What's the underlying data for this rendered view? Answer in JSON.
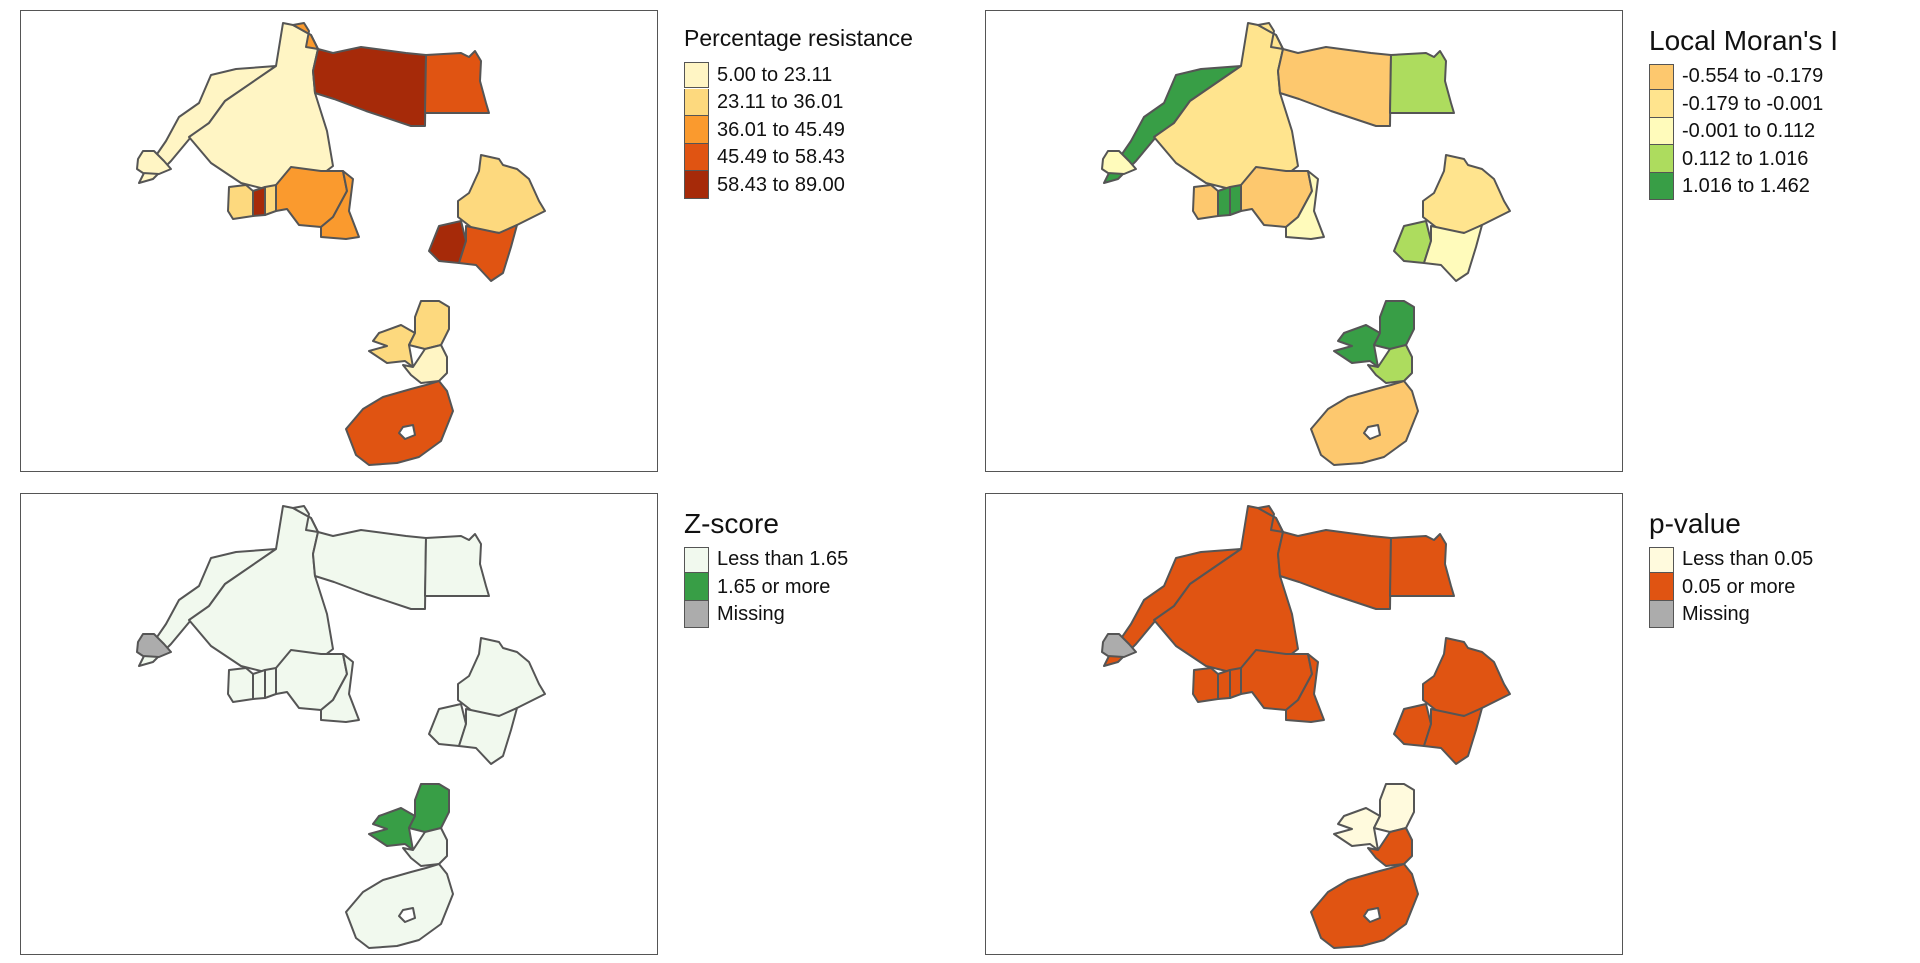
{
  "panels": [
    {
      "legend_title": "Percentage resistance",
      "legend": [
        {
          "label": "5.00 to 23.11",
          "color": "#FFF5C4"
        },
        {
          "label": "23.11 to 36.01",
          "color": "#FDD97E"
        },
        {
          "label": "36.01 to 45.49",
          "color": "#FA9A2E"
        },
        {
          "label": "45.49 to 58.43",
          "color": "#E05412"
        },
        {
          "label": "58.43 to 89.00",
          "color": "#A62A09"
        }
      ],
      "regions": {
        "morocco": "#FFF5C4",
        "algeria": "#FFF5C4",
        "tunisia": "#FA9A2E",
        "libya": "#A62A09",
        "egypt": "#E05412",
        "senegal": "#FFF5C4",
        "wa1": "#FDD97E",
        "wa2": "#A62A09",
        "wa3": "#FDD97E",
        "wa4": "#FA9A2E",
        "wa5": "#FA9A2E",
        "ethiopia": "#FDD97E",
        "uganda": "#A62A09",
        "kenya": "#E05412",
        "zambia": "#FDD97E",
        "malawi": "#FDD97E",
        "mozambique": "#FFF5C4",
        "south_africa": "#E05412"
      }
    },
    {
      "legend_title": "Local Moran's I",
      "legend": [
        {
          "label": "-0.554 to -0.179",
          "color": "#FDC86E"
        },
        {
          "label": "-0.179 to -0.001",
          "color": "#FFE48E"
        },
        {
          "label": "-0.001 to 0.112",
          "color": "#FFFBBB"
        },
        {
          "label": "0.112 to 1.016",
          "color": "#ADDC5E"
        },
        {
          "label": "1.016 to 1.462",
          "color": "#389E46"
        }
      ],
      "regions": {
        "morocco": "#389E46",
        "algeria": "#FFE48E",
        "tunisia": "#FFE48E",
        "libya": "#FDC86E",
        "egypt": "#ADDC5E",
        "senegal": "#FFFBBB",
        "wa1": "#FDC86E",
        "wa2": "#389E46",
        "wa3": "#389E46",
        "wa4": "#FDC86E",
        "wa5": "#FFFBBB",
        "ethiopia": "#FFE48E",
        "uganda": "#ADDC5E",
        "kenya": "#FFFBBB",
        "zambia": "#389E46",
        "malawi": "#389E46",
        "mozambique": "#ADDC5E",
        "south_africa": "#FDC86E"
      }
    },
    {
      "legend_title": "Z-score",
      "legend": [
        {
          "label": "Less than 1.65",
          "color": "#F1F9EE"
        },
        {
          "label": "1.65 or more",
          "color": "#389E46"
        },
        {
          "label": "Missing",
          "color": "#ACACAC"
        }
      ],
      "regions": {
        "morocco": "#F1F9EE",
        "algeria": "#F1F9EE",
        "tunisia": "#F1F9EE",
        "libya": "#F1F9EE",
        "egypt": "#F1F9EE",
        "senegal": "#ACACAC",
        "wa1": "#F1F9EE",
        "wa2": "#F1F9EE",
        "wa3": "#F1F9EE",
        "wa4": "#F1F9EE",
        "wa5": "#F1F9EE",
        "ethiopia": "#F1F9EE",
        "uganda": "#F1F9EE",
        "kenya": "#F1F9EE",
        "zambia": "#389E46",
        "malawi": "#389E46",
        "mozambique": "#F1F9EE",
        "south_africa": "#F1F9EE"
      }
    },
    {
      "legend_title": "p-value",
      "legend": [
        {
          "label": "Less than 0.05",
          "color": "#FFFADD"
        },
        {
          "label": "0.05 or more",
          "color": "#E05412"
        },
        {
          "label": "Missing",
          "color": "#ACACAC"
        }
      ],
      "regions": {
        "morocco": "#E05412",
        "algeria": "#E05412",
        "tunisia": "#E05412",
        "libya": "#E05412",
        "egypt": "#E05412",
        "senegal": "#ACACAC",
        "wa1": "#E05412",
        "wa2": "#E05412",
        "wa3": "#E05412",
        "wa4": "#E05412",
        "wa5": "#E05412",
        "ethiopia": "#E05412",
        "uganda": "#E05412",
        "kenya": "#E05412",
        "zambia": "#FFFADD",
        "malawi": "#FFFADD",
        "mozambique": "#E05412",
        "south_africa": "#E05412"
      }
    }
  ]
}
